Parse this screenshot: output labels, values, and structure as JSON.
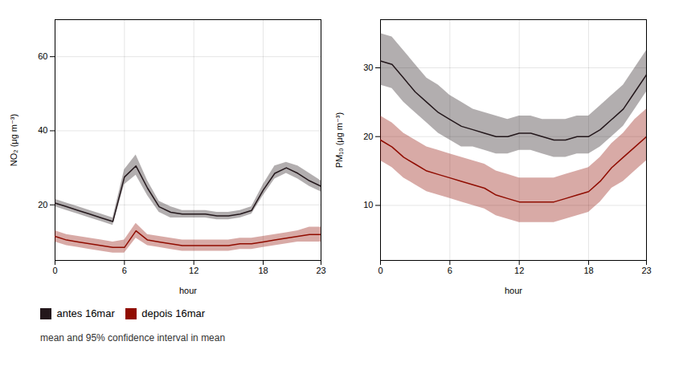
{
  "chart_data": [
    {
      "type": "line",
      "xlabel": "hour",
      "ylabel": "NO₂ (μg m⁻³)",
      "annotation": "mean and 95% confidence interval in mean",
      "legend": "bottom",
      "grid": true,
      "xlim": [
        0,
        23
      ],
      "xticks": [
        0,
        6,
        12,
        18,
        23
      ],
      "ylim": [
        5,
        70
      ],
      "yticks": [
        20,
        40,
        60
      ],
      "x": [
        0,
        1,
        2,
        3,
        4,
        5,
        6,
        7,
        8,
        9,
        10,
        11,
        12,
        13,
        14,
        15,
        16,
        17,
        18,
        19,
        20,
        21,
        22,
        23
      ],
      "series": [
        {
          "name": "antes 16mar",
          "values": [
            20.5,
            19.5,
            18.5,
            17.5,
            16.5,
            15.5,
            27.5,
            30.5,
            24.5,
            19.5,
            18.0,
            17.5,
            17.5,
            17.5,
            17.0,
            17.0,
            17.5,
            18.5,
            24.0,
            28.5,
            30.0,
            28.5,
            26.5,
            25.0
          ],
          "lower": [
            19.5,
            18.5,
            17.5,
            16.5,
            15.5,
            14.5,
            25.5,
            28.0,
            22.5,
            18.0,
            16.5,
            16.5,
            16.5,
            16.5,
            16.0,
            16.0,
            16.5,
            17.5,
            22.5,
            27.0,
            28.5,
            27.0,
            25.0,
            23.5
          ],
          "upper": [
            21.5,
            20.5,
            19.5,
            18.5,
            17.5,
            16.5,
            29.5,
            33.5,
            26.5,
            21.0,
            19.5,
            18.5,
            18.5,
            18.5,
            18.0,
            18.0,
            18.5,
            19.5,
            25.5,
            30.5,
            31.5,
            30.5,
            28.5,
            26.5
          ]
        },
        {
          "name": "depois 16mar",
          "values": [
            11.5,
            10.5,
            10.0,
            9.5,
            9.0,
            8.5,
            8.5,
            13.0,
            10.5,
            10.0,
            9.5,
            9.0,
            9.0,
            9.0,
            9.0,
            9.0,
            9.5,
            9.5,
            10.0,
            10.5,
            11.0,
            11.5,
            12.0,
            12.0
          ],
          "lower": [
            10.0,
            9.0,
            8.5,
            8.0,
            7.5,
            7.0,
            7.0,
            11.0,
            9.0,
            8.5,
            8.0,
            7.5,
            7.5,
            7.5,
            7.5,
            7.5,
            8.0,
            8.0,
            8.5,
            9.0,
            9.5,
            10.0,
            10.0,
            10.0
          ],
          "upper": [
            13.0,
            12.0,
            11.5,
            11.0,
            10.5,
            10.0,
            10.5,
            15.0,
            12.0,
            11.5,
            11.0,
            10.5,
            10.5,
            10.5,
            10.5,
            10.5,
            11.0,
            11.0,
            11.5,
            12.0,
            12.5,
            13.0,
            14.0,
            14.0
          ]
        }
      ]
    },
    {
      "type": "line",
      "xlabel": "hour",
      "ylabel": "PM₁₀ (μg m⁻³)",
      "grid": true,
      "xlim": [
        0,
        23
      ],
      "xticks": [
        0,
        6,
        12,
        18,
        23
      ],
      "ylim": [
        2,
        37
      ],
      "yticks": [
        10,
        20,
        30
      ],
      "x": [
        0,
        1,
        2,
        3,
        4,
        5,
        6,
        7,
        8,
        9,
        10,
        11,
        12,
        13,
        14,
        15,
        16,
        17,
        18,
        19,
        20,
        21,
        22,
        23
      ],
      "series": [
        {
          "name": "antes 16mar",
          "values": [
            31.0,
            30.5,
            28.5,
            26.5,
            25.0,
            23.5,
            22.5,
            21.5,
            21.0,
            20.5,
            20.0,
            20.0,
            20.5,
            20.5,
            20.0,
            19.5,
            19.5,
            20.0,
            20.0,
            21.0,
            22.5,
            24.0,
            26.5,
            29.0
          ],
          "lower": [
            27.5,
            27.0,
            25.0,
            23.5,
            22.0,
            20.5,
            19.5,
            18.5,
            18.5,
            18.0,
            17.5,
            17.5,
            18.0,
            18.0,
            17.5,
            17.0,
            17.0,
            17.5,
            17.5,
            18.5,
            20.0,
            21.5,
            24.0,
            26.5
          ],
          "upper": [
            35.0,
            34.5,
            32.5,
            30.5,
            28.5,
            27.5,
            26.0,
            25.0,
            24.0,
            23.5,
            23.0,
            22.5,
            23.0,
            23.0,
            22.5,
            22.5,
            22.5,
            23.0,
            23.0,
            24.5,
            26.0,
            27.5,
            30.0,
            32.5
          ]
        },
        {
          "name": "depois 16mar",
          "values": [
            19.5,
            18.5,
            17.0,
            16.0,
            15.0,
            14.5,
            14.0,
            13.5,
            13.0,
            12.5,
            11.5,
            11.0,
            10.5,
            10.5,
            10.5,
            10.5,
            11.0,
            11.5,
            12.0,
            13.5,
            15.5,
            17.0,
            18.5,
            20.0
          ],
          "lower": [
            16.5,
            15.5,
            14.0,
            13.0,
            12.0,
            11.5,
            11.0,
            10.5,
            10.0,
            9.5,
            8.5,
            8.0,
            7.5,
            7.5,
            7.5,
            7.5,
            8.0,
            8.5,
            9.0,
            10.5,
            12.5,
            13.5,
            15.0,
            16.5
          ],
          "upper": [
            23.0,
            22.0,
            20.5,
            19.5,
            18.5,
            18.0,
            17.5,
            17.0,
            16.5,
            16.0,
            15.0,
            14.5,
            14.0,
            14.0,
            14.0,
            14.0,
            14.5,
            15.0,
            15.5,
            17.0,
            19.0,
            20.5,
            22.5,
            24.0
          ]
        }
      ]
    }
  ]
}
